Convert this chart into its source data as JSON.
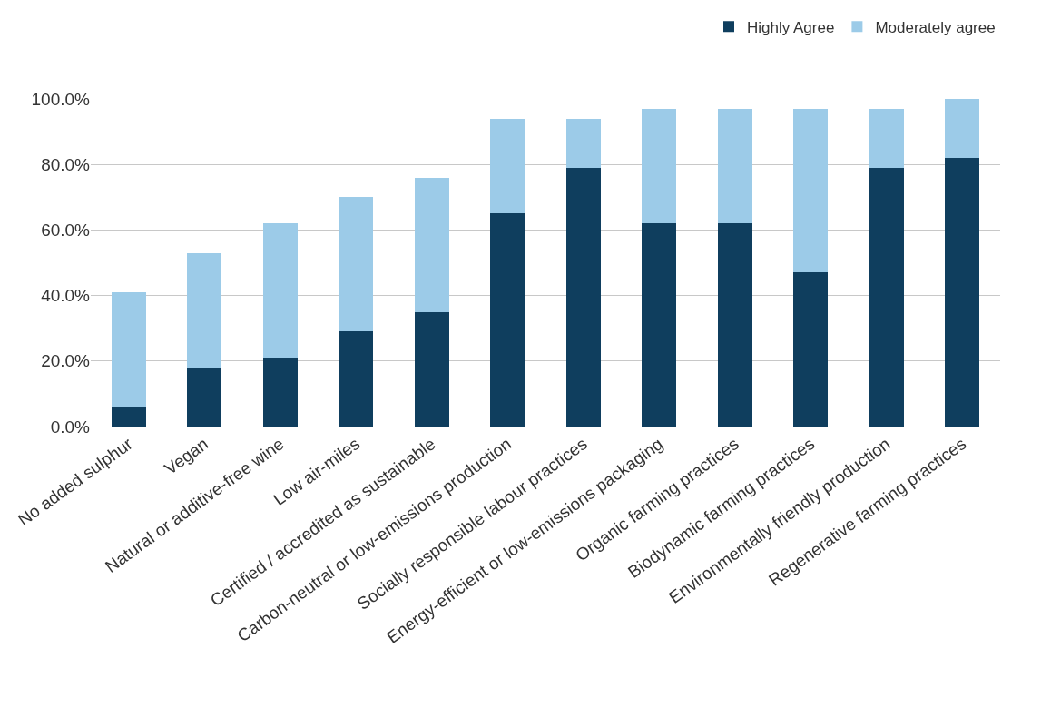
{
  "chart_data": {
    "type": "bar",
    "stacked": true,
    "categories": [
      "No added sulphur",
      "Vegan",
      "Natural or additive-free wine",
      "Low air-miles",
      "Certified / accredited as sustainable",
      "Carbon-neutral or low-emissions production",
      "Socially responsible labour practices",
      "Energy-efficient or low-emissions packaging",
      "Organic farming practices",
      "Biodynamic farming practices",
      "Environmentally friendly production",
      "Regenerative farming practices"
    ],
    "series": [
      {
        "name": "Highly Agree",
        "color": "#0f3e5e",
        "values": [
          6,
          18,
          21,
          29,
          35,
          65,
          79,
          62,
          62,
          47,
          79,
          82
        ]
      },
      {
        "name": "Moderately agree",
        "color": "#9ccbe8",
        "values": [
          35,
          35,
          41,
          41,
          41,
          29,
          15,
          35,
          35,
          50,
          18,
          18
        ]
      }
    ],
    "ylim": [
      0,
      100
    ],
    "yticks": [
      {
        "value": 0,
        "label": "0.0%"
      },
      {
        "value": 20,
        "label": "20.0%"
      },
      {
        "value": 40,
        "label": "40.0%"
      },
      {
        "value": 60,
        "label": "60.0%"
      },
      {
        "value": 80,
        "label": "80.0%"
      },
      {
        "value": 100,
        "label": "100.0%"
      }
    ],
    "grid": "y",
    "legend": "top right"
  }
}
